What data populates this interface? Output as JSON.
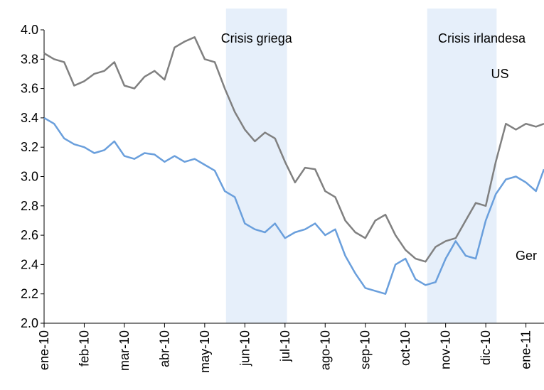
{
  "chart_data": {
    "type": "line",
    "x": [
      0,
      0.25,
      0.5,
      0.75,
      1,
      1.25,
      1.5,
      1.75,
      2,
      2.25,
      2.5,
      2.75,
      3,
      3.25,
      3.5,
      3.75,
      4,
      4.25,
      4.5,
      4.75,
      5,
      5.25,
      5.5,
      5.75,
      6,
      6.25,
      6.5,
      6.75,
      7,
      7.25,
      7.5,
      7.75,
      8,
      8.25,
      8.5,
      8.75,
      9,
      9.25,
      9.5,
      9.75,
      10,
      10.25,
      10.5,
      10.75,
      11,
      11.25,
      11.5,
      11.75,
      12,
      12.25,
      12.45
    ],
    "series": [
      {
        "name": "US",
        "color": "#808080",
        "values": [
          3.84,
          3.8,
          3.78,
          3.62,
          3.65,
          3.7,
          3.72,
          3.78,
          3.62,
          3.6,
          3.68,
          3.72,
          3.66,
          3.88,
          3.92,
          3.95,
          3.8,
          3.78,
          3.6,
          3.44,
          3.32,
          3.24,
          3.3,
          3.26,
          3.1,
          2.96,
          3.06,
          3.05,
          2.9,
          2.86,
          2.7,
          2.62,
          2.58,
          2.7,
          2.74,
          2.6,
          2.5,
          2.44,
          2.42,
          2.52,
          2.56,
          2.58,
          2.7,
          2.82,
          2.8,
          3.1,
          3.36,
          3.32,
          3.36,
          3.34,
          3.36
        ]
      },
      {
        "name": "Ger",
        "color": "#6a9fdc",
        "values": [
          3.4,
          3.36,
          3.26,
          3.22,
          3.2,
          3.16,
          3.18,
          3.24,
          3.14,
          3.12,
          3.16,
          3.15,
          3.1,
          3.14,
          3.1,
          3.12,
          3.08,
          3.04,
          2.9,
          2.86,
          2.68,
          2.64,
          2.62,
          2.68,
          2.58,
          2.62,
          2.64,
          2.68,
          2.6,
          2.64,
          2.46,
          2.34,
          2.24,
          2.22,
          2.2,
          2.4,
          2.44,
          2.3,
          2.26,
          2.28,
          2.44,
          2.56,
          2.46,
          2.44,
          2.7,
          2.88,
          2.98,
          3.0,
          2.96,
          2.9,
          3.05
        ]
      }
    ],
    "shaded_regions": [
      {
        "label": "Crisis griega",
        "xlim": [
          4.53,
          6.05
        ],
        "color": "#e6effa"
      },
      {
        "label": "Crisis irlandesa",
        "xlim": [
          9.54,
          11.27
        ],
        "color": "#e6effa"
      }
    ],
    "xlim": [
      0,
      12.45
    ],
    "xticks": [
      {
        "value": 0,
        "label": "ene-10"
      },
      {
        "value": 1,
        "label": "feb-10"
      },
      {
        "value": 2,
        "label": "mar-10"
      },
      {
        "value": 3,
        "label": "abr-10"
      },
      {
        "value": 4,
        "label": "may-10"
      },
      {
        "value": 5,
        "label": "jun-10"
      },
      {
        "value": 6,
        "label": "jul-10"
      },
      {
        "value": 7,
        "label": "ago-10"
      },
      {
        "value": 8,
        "label": "sep-10"
      },
      {
        "value": 9,
        "label": "oct-10"
      },
      {
        "value": 10,
        "label": "nov-10"
      },
      {
        "value": 11,
        "label": "dic-10"
      },
      {
        "value": 12,
        "label": "ene-11"
      }
    ],
    "ylim": [
      2.0,
      4.0
    ],
    "yticks": [
      {
        "value": 2.0,
        "label": "2.0"
      },
      {
        "value": 2.2,
        "label": "2.2"
      },
      {
        "value": 2.4,
        "label": "2.4"
      },
      {
        "value": 2.6,
        "label": "2.6"
      },
      {
        "value": 2.8,
        "label": "2.8"
      },
      {
        "value": 3.0,
        "label": "3.0"
      },
      {
        "value": 3.2,
        "label": "3.2"
      },
      {
        "value": 3.4,
        "label": "3.4"
      },
      {
        "value": 3.6,
        "label": "3.6"
      },
      {
        "value": 3.8,
        "label": "3.8"
      },
      {
        "value": 4.0,
        "label": "4.0"
      }
    ],
    "grid": false
  }
}
